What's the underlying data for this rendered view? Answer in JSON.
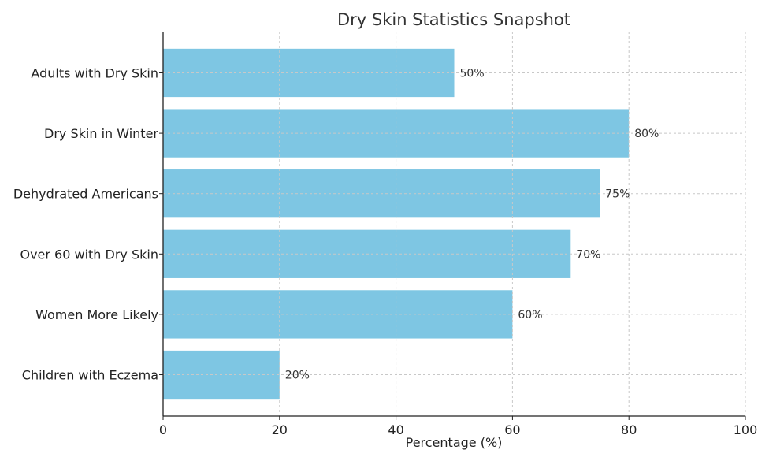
{
  "chart_data": {
    "type": "bar",
    "orientation": "horizontal",
    "title": "Dry Skin Statistics Snapshot",
    "xlabel": "Percentage (%)",
    "ylabel": "",
    "categories": [
      "Adults with Dry Skin",
      "Dry Skin in Winter",
      "Dehydrated Americans",
      "Over 60 with Dry Skin",
      "Women More Likely",
      "Children with Eczema"
    ],
    "values": [
      50,
      80,
      75,
      70,
      60,
      20
    ],
    "data_labels": [
      "50%",
      "80%",
      "75%",
      "70%",
      "60%",
      "20%"
    ],
    "xlim": [
      0,
      100
    ],
    "xticks": [
      0,
      20,
      40,
      60,
      80,
      100
    ],
    "xtick_labels": [
      "0",
      "20",
      "40",
      "60",
      "80",
      "100"
    ],
    "grid": true,
    "bar_color": "#7EC6E3"
  }
}
